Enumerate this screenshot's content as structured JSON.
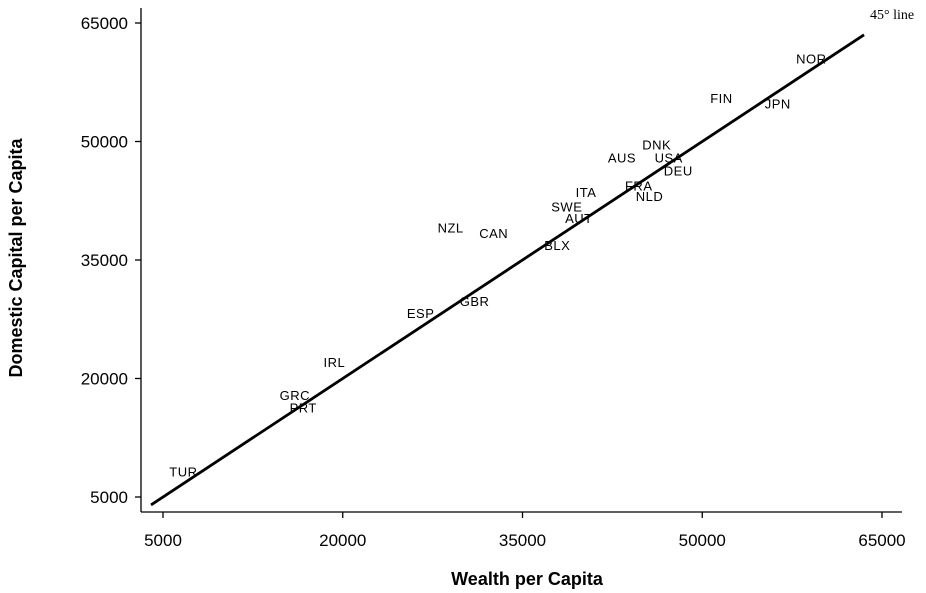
{
  "chart_data": {
    "type": "scatter",
    "title": "",
    "xlabel": "Wealth per Capita",
    "ylabel": "Domestic Capital per Capita",
    "xlim": [
      4200,
      67000
    ],
    "ylim": [
      3000,
      67000
    ],
    "xticks": [
      5000,
      20000,
      35000,
      50000,
      65000
    ],
    "yticks": [
      5000,
      20000,
      35000,
      50000,
      65000
    ],
    "xtick_labels": [
      "5000",
      "20000",
      "35000",
      "50000",
      "65000"
    ],
    "ytick_labels": [
      "5000",
      "20000",
      "35000",
      "50000",
      "65000"
    ],
    "grid": false,
    "points": [
      {
        "label": "TUR",
        "x": 6700,
        "y": 8200
      },
      {
        "label": "GRC",
        "x": 16000,
        "y": 17900
      },
      {
        "label": "PRT",
        "x": 16700,
        "y": 16300
      },
      {
        "label": "IRL",
        "x": 19300,
        "y": 22100
      },
      {
        "label": "ESP",
        "x": 26500,
        "y": 28300
      },
      {
        "label": "GBR",
        "x": 31000,
        "y": 29800
      },
      {
        "label": "NZL",
        "x": 29000,
        "y": 39100
      },
      {
        "label": "CAN",
        "x": 32600,
        "y": 38400
      },
      {
        "label": "BLX",
        "x": 37900,
        "y": 36900
      },
      {
        "label": "SWE",
        "x": 38700,
        "y": 41800
      },
      {
        "label": "AUT",
        "x": 39700,
        "y": 40300
      },
      {
        "label": "ITA",
        "x": 40300,
        "y": 43600
      },
      {
        "label": "AUS",
        "x": 43300,
        "y": 48000
      },
      {
        "label": "FRA",
        "x": 44700,
        "y": 44400
      },
      {
        "label": "NLD",
        "x": 45600,
        "y": 43100
      },
      {
        "label": "DNK",
        "x": 46200,
        "y": 49600
      },
      {
        "label": "USA",
        "x": 47200,
        "y": 48000
      },
      {
        "label": "DEU",
        "x": 48000,
        "y": 46300
      },
      {
        "label": "FIN",
        "x": 51600,
        "y": 55500
      },
      {
        "label": "JPN",
        "x": 56300,
        "y": 54800
      },
      {
        "label": "NOR",
        "x": 59100,
        "y": 60500
      }
    ],
    "reference_line": {
      "label": "45° line",
      "from": 4000,
      "to": 63500
    }
  }
}
